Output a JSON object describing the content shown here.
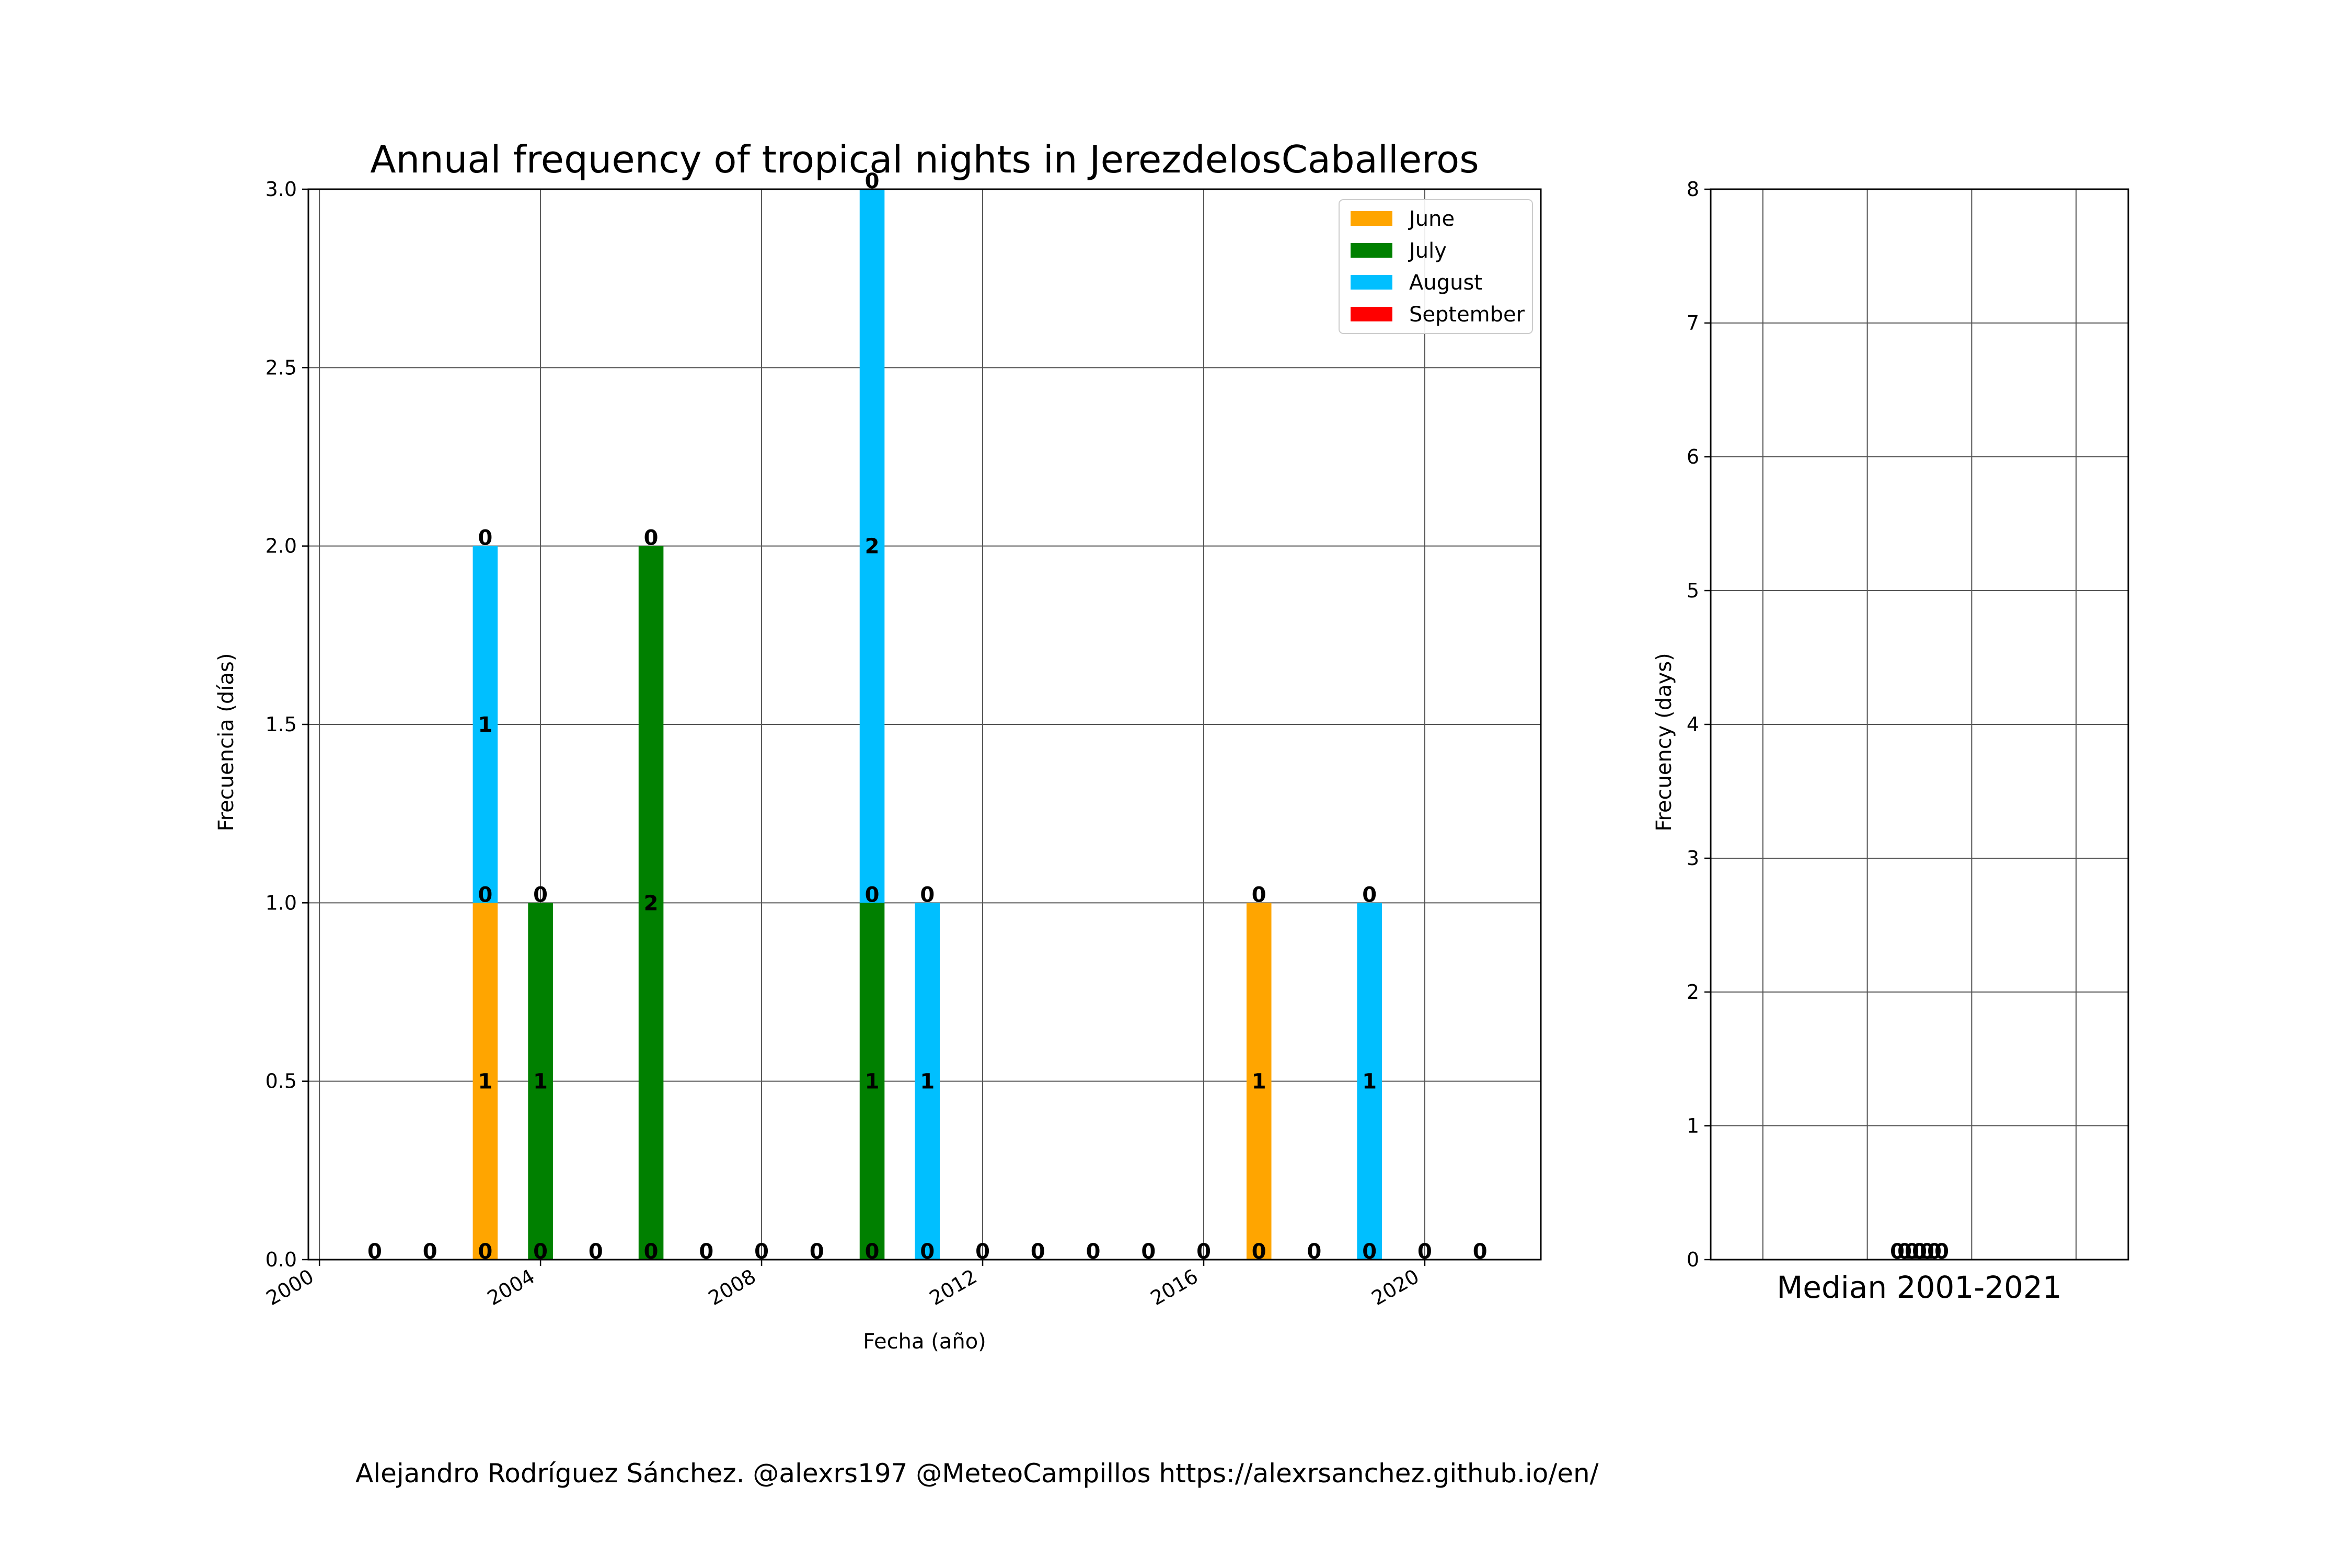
{
  "credit": "Alejandro Rodríguez Sánchez. @alexrs197 @MeteoCampillos   https://alexrsanchez.github.io/en/",
  "chart_data": [
    {
      "type": "bar",
      "stacked": true,
      "title": "Annual frequency of tropical nights in JerezdelosCaballeros",
      "xlabel": "Fecha (año)",
      "ylabel": "Frecuencia (días)",
      "xlim": [
        1999.8,
        2022.1
      ],
      "ylim": [
        0,
        3
      ],
      "xticks": [
        2000,
        2004,
        2008,
        2012,
        2016,
        2020
      ],
      "xtick_labels": [
        "2000",
        "2004",
        "2008",
        "2012",
        "2016",
        "2020"
      ],
      "yticks": [
        0,
        0.5,
        1,
        1.5,
        2,
        2.5,
        3
      ],
      "ytick_labels": [
        "0.0",
        "0.5",
        "1.0",
        "1.5",
        "2.0",
        "2.5",
        "3.0"
      ],
      "grid": true,
      "legend_position": "top-right",
      "x": [
        2001,
        2002,
        2003,
        2004,
        2005,
        2006,
        2007,
        2008,
        2009,
        2010,
        2011,
        2012,
        2013,
        2014,
        2015,
        2016,
        2017,
        2018,
        2019,
        2020,
        2021
      ],
      "series": [
        {
          "name": "June",
          "color": "#ffa500",
          "values": [
            0,
            0,
            1,
            0,
            0,
            0,
            0,
            0,
            0,
            0,
            0,
            0,
            0,
            0,
            0,
            0,
            1,
            0,
            0,
            0,
            0
          ]
        },
        {
          "name": "July",
          "color": "#008000",
          "values": [
            0,
            0,
            0,
            1,
            0,
            2,
            0,
            0,
            0,
            1,
            0,
            0,
            0,
            0,
            0,
            0,
            0,
            0,
            0,
            0,
            0
          ]
        },
        {
          "name": "August",
          "color": "#00bfff",
          "values": [
            0,
            0,
            1,
            0,
            0,
            0,
            0,
            0,
            0,
            2,
            1,
            0,
            0,
            0,
            0,
            0,
            0,
            0,
            1,
            0,
            0
          ]
        },
        {
          "name": "September",
          "color": "#ff0000",
          "values": [
            0,
            0,
            0,
            0,
            0,
            0,
            0,
            0,
            0,
            0,
            0,
            0,
            0,
            0,
            0,
            0,
            0,
            0,
            0,
            0,
            0
          ]
        }
      ]
    },
    {
      "type": "bar",
      "stacked": true,
      "title": "",
      "xlabel": "Median 2001-2021",
      "ylabel": "Frecuency (days)",
      "ylim": [
        0,
        8
      ],
      "yticks": [
        0,
        1,
        2,
        3,
        4,
        5,
        6,
        7,
        8
      ],
      "ytick_labels": [
        "0",
        "1",
        "2",
        "3",
        "4",
        "5",
        "6",
        "7",
        "8"
      ],
      "grid": true,
      "series": [
        {
          "name": "June",
          "color": "#ffa500",
          "values": [
            0.0
          ]
        },
        {
          "name": "July",
          "color": "#008000",
          "values": [
            0.0
          ]
        },
        {
          "name": "August",
          "color": "#00bfff",
          "values": [
            0.0
          ]
        },
        {
          "name": "September",
          "color": "#ff0000",
          "values": [
            0.0
          ]
        }
      ],
      "value_labels": [
        "0.0",
        "0.0",
        "0.0",
        "0.0"
      ]
    }
  ]
}
